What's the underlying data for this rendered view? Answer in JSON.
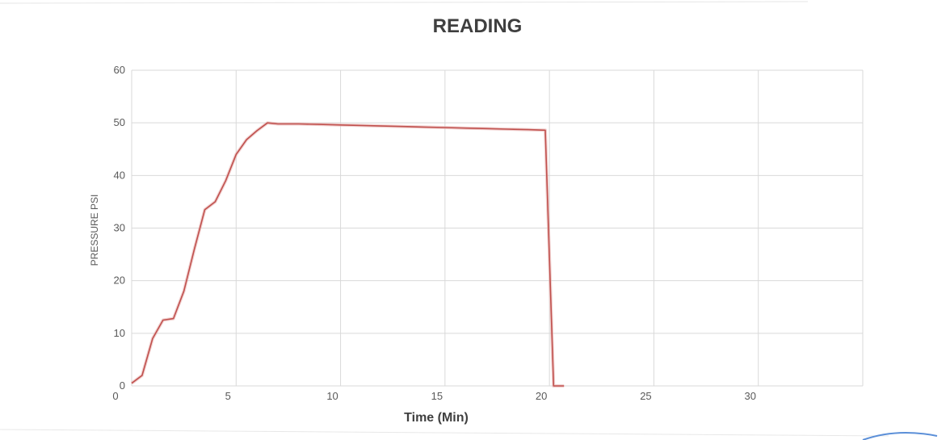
{
  "chart_data": {
    "type": "line",
    "title": "READING",
    "xlabel": "Time (Min)",
    "ylabel": "PRESSURE PSI",
    "xlim": [
      0,
      35
    ],
    "ylim": [
      0,
      60
    ],
    "x_ticks": [
      0,
      5,
      10,
      15,
      20,
      25,
      30
    ],
    "y_ticks": [
      0,
      10,
      20,
      30,
      40,
      50,
      60
    ],
    "grid": true,
    "legend": "none",
    "series": [
      {
        "color": "#c0504d",
        "x": [
          0,
          0.5,
          1,
          1.5,
          2,
          2.5,
          3,
          3.5,
          4,
          4.5,
          5,
          5.5,
          6,
          6.5,
          7,
          7.5,
          8,
          9,
          10,
          11,
          12,
          13,
          14,
          15,
          16,
          17,
          18,
          19,
          19.8,
          20.2,
          20.7
        ],
        "y": [
          0.5,
          2,
          9,
          12.5,
          12.8,
          18,
          26,
          33.5,
          35,
          39,
          44,
          46.8,
          48.5,
          50,
          49.8,
          49.8,
          49.8,
          49.7,
          49.6,
          49.5,
          49.4,
          49.3,
          49.2,
          49.1,
          49,
          48.9,
          48.8,
          48.7,
          48.6,
          0,
          0
        ]
      }
    ]
  }
}
